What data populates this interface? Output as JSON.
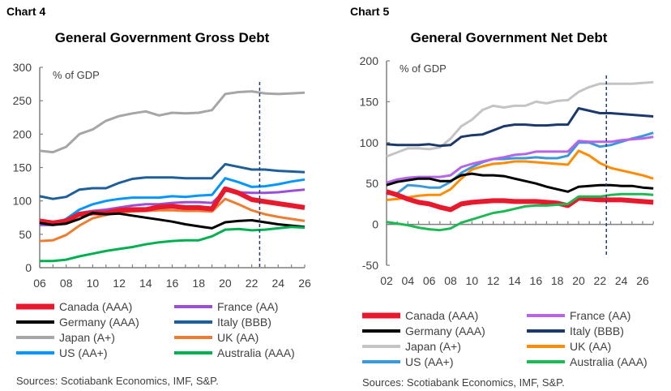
{
  "chart_data": [
    {
      "label": "Chart 4",
      "type": "line",
      "title": "General Government Gross Debt",
      "unit_label": "% of GDP",
      "x": [
        2006,
        2007,
        2008,
        2009,
        2010,
        2011,
        2012,
        2013,
        2014,
        2015,
        2016,
        2017,
        2018,
        2019,
        2020,
        2021,
        2022,
        2023,
        2024,
        2025,
        2026
      ],
      "xticks": [
        "06",
        "08",
        "10",
        "12",
        "14",
        "16",
        "18",
        "20",
        "22",
        "24",
        "26"
      ],
      "ylim": [
        0,
        300
      ],
      "yticks": [
        "0",
        "50",
        "100",
        "150",
        "200",
        "250",
        "300"
      ],
      "forecast_marker": 2022.6,
      "source": "Sources: Scotiabank Economics, IMF, S&P.",
      "series": [
        {
          "name": "Japan (A+)",
          "color": "#a6a6a6",
          "values": [
            175,
            173,
            181,
            200,
            207,
            220,
            227,
            231,
            234,
            228,
            232,
            231,
            232,
            236,
            260,
            263,
            264,
            261,
            260,
            261,
            262
          ]
        },
        {
          "name": "Italy (BBB)",
          "color": "#1f5f99",
          "values": [
            107,
            103,
            106,
            117,
            119,
            119,
            127,
            133,
            135,
            135,
            135,
            134,
            134,
            134,
            155,
            151,
            147,
            147,
            145,
            144,
            143
          ]
        },
        {
          "name": "US (AA+)",
          "color": "#0096ff",
          "values": [
            64,
            64,
            73,
            87,
            95,
            100,
            103,
            105,
            105,
            105,
            107,
            106,
            108,
            109,
            134,
            128,
            121,
            122,
            125,
            129,
            132
          ]
        },
        {
          "name": "France (AA)",
          "color": "#9b4fd6",
          "values": [
            64,
            64,
            68,
            82,
            85,
            87,
            90,
            93,
            95,
            95,
            97,
            98,
            98,
            97,
            115,
            113,
            112,
            112,
            113,
            115,
            117
          ]
        },
        {
          "name": "UK (AA)",
          "color": "#ed7d31",
          "values": [
            40,
            41,
            49,
            63,
            74,
            79,
            83,
            84,
            85,
            86,
            86,
            85,
            85,
            84,
            103,
            95,
            86,
            80,
            76,
            73,
            70
          ]
        },
        {
          "name": "Canada (AAA)",
          "color": "#e8192c",
          "values": [
            70,
            67,
            70,
            80,
            82,
            82,
            86,
            87,
            87,
            91,
            92,
            90,
            90,
            88,
            118,
            112,
            102,
            99,
            96,
            93,
            90
          ]
        },
        {
          "name": "Germany (AAA)",
          "color": "#000000",
          "values": [
            67,
            64,
            66,
            73,
            82,
            80,
            81,
            78,
            75,
            72,
            69,
            65,
            62,
            59,
            68,
            70,
            71,
            68,
            65,
            63,
            61
          ]
        },
        {
          "name": "Australia (AAA)",
          "color": "#00b050",
          "values": [
            10,
            10,
            12,
            17,
            21,
            25,
            28,
            31,
            35,
            38,
            40,
            41,
            41,
            47,
            57,
            58,
            56,
            57,
            59,
            61,
            60
          ]
        }
      ],
      "legend_order": [
        "Canada (AAA)",
        "France (AA)",
        "Germany (AAA)",
        "Italy (BBB)",
        "Japan (A+)",
        "UK (AA)",
        "US (AA+)",
        "Australia (AAA)"
      ]
    },
    {
      "label": "Chart 5",
      "type": "line",
      "title": "General Government Net Debt",
      "unit_label": "% of GDP",
      "x": [
        2002,
        2003,
        2004,
        2005,
        2006,
        2007,
        2008,
        2009,
        2010,
        2011,
        2012,
        2013,
        2014,
        2015,
        2016,
        2017,
        2018,
        2019,
        2020,
        2021,
        2022,
        2023,
        2024,
        2025,
        2026,
        2027
      ],
      "xticks": [
        "02",
        "04",
        "06",
        "08",
        "10",
        "12",
        "14",
        "16",
        "18",
        "20",
        "22",
        "24",
        "26"
      ],
      "ylim": [
        -50,
        200
      ],
      "yticks": [
        "-50",
        "0",
        "50",
        "100",
        "150",
        "200"
      ],
      "forecast_marker": 2022.6,
      "source": "Sources: Scotiabank Economics, IMF, S&P.",
      "series": [
        {
          "name": "Japan (A+)",
          "color": "#c4c4c4",
          "values": [
            83,
            88,
            93,
            93,
            92,
            94,
            105,
            120,
            128,
            140,
            145,
            143,
            145,
            145,
            150,
            148,
            151,
            152,
            162,
            168,
            172,
            172,
            172,
            172,
            173,
            174
          ]
        },
        {
          "name": "Italy (BBB)",
          "color": "#1b3a6b",
          "values": [
            98,
            97,
            97,
            97,
            98,
            96,
            97,
            107,
            109,
            110,
            115,
            120,
            122,
            122,
            121,
            121,
            122,
            122,
            142,
            139,
            136,
            136,
            135,
            134,
            133,
            132
          ]
        },
        {
          "name": "US (AA+)",
          "color": "#3a9ad9",
          "values": [
            37,
            38,
            48,
            47,
            45,
            45,
            52,
            63,
            70,
            76,
            80,
            80,
            81,
            81,
            82,
            81,
            81,
            84,
            100,
            100,
            95,
            97,
            101,
            105,
            108,
            112
          ]
        },
        {
          "name": "France (AA)",
          "color": "#b565e8",
          "values": [
            51,
            55,
            57,
            58,
            58,
            58,
            60,
            70,
            74,
            77,
            80,
            82,
            85,
            86,
            89,
            89,
            89,
            89,
            102,
            101,
            101,
            101,
            103,
            104,
            105,
            107
          ]
        },
        {
          "name": "UK (AA)",
          "color": "#ff8c00",
          "values": [
            30,
            31,
            33,
            35,
            36,
            36,
            43,
            56,
            67,
            71,
            74,
            75,
            77,
            77,
            76,
            75,
            74,
            73,
            90,
            84,
            75,
            69,
            66,
            63,
            60,
            56
          ]
        },
        {
          "name": "Germany (AAA)",
          "color": "#000000",
          "values": [
            48,
            52,
            54,
            56,
            56,
            53,
            53,
            60,
            62,
            60,
            60,
            59,
            56,
            53,
            50,
            46,
            43,
            40,
            46,
            47,
            48,
            48,
            47,
            47,
            45,
            44
          ]
        },
        {
          "name": "Canada (AAA)",
          "color": "#e8192c",
          "values": [
            40,
            36,
            31,
            27,
            25,
            21,
            18,
            25,
            27,
            28,
            29,
            29,
            28,
            28,
            28,
            27,
            26,
            23,
            32,
            31,
            30,
            30,
            30,
            29,
            28,
            27
          ]
        },
        {
          "name": "Australia (AAA)",
          "color": "#1db954",
          "values": [
            3,
            1,
            -1,
            -4,
            -6,
            -7,
            -5,
            2,
            6,
            10,
            14,
            16,
            19,
            22,
            23,
            23,
            24,
            25,
            34,
            34,
            34,
            36,
            37,
            37,
            37,
            36
          ]
        }
      ],
      "legend_order": [
        "Canada (AAA)",
        "France (AA)",
        "Germany (AAA)",
        "Italy (BBB)",
        "Japan (A+)",
        "UK (AA)",
        "US (AA+)",
        "Australia (AAA)"
      ]
    }
  ]
}
